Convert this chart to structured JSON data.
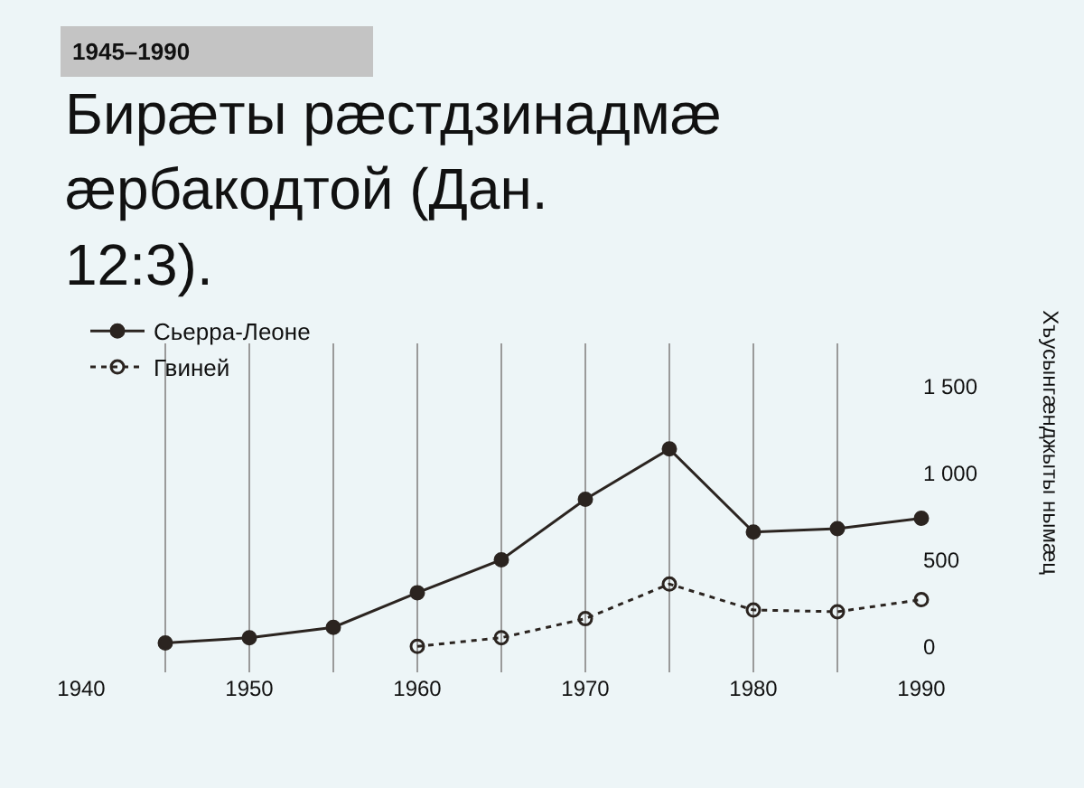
{
  "chart_data": {
    "type": "line",
    "title": "Бирæты рæстдзинадмæ æрбакодтой (Дан. 12:3).",
    "subtitle": "1945–1990",
    "ylabel": "Хъусынгæнджыты нымæц",
    "series": [
      {
        "name": "Сьерра-Леоне",
        "color": "#2b2420",
        "line_style": "solid",
        "marker": "circle",
        "x": [
          1945,
          1950,
          1955,
          1960,
          1965,
          1970,
          1975,
          1980,
          1985,
          1990
        ],
        "values": [
          20,
          50,
          110,
          310,
          500,
          850,
          1140,
          660,
          680,
          740
        ]
      },
      {
        "name": "Гвиней",
        "color": "#2b2420",
        "line_style": "dotted",
        "marker": "circle-open",
        "x": [
          1960,
          1965,
          1970,
          1975,
          1980,
          1985,
          1990
        ],
        "values": [
          0,
          50,
          160,
          360,
          210,
          200,
          270
        ]
      }
    ],
    "xlim": [
      1940,
      1990
    ],
    "xticks": [
      1940,
      {
        "value": 1945,
        "label": null
      },
      1950,
      {
        "value": 1955,
        "label": null
      },
      1960,
      {
        "value": 1965,
        "label": null
      },
      1970,
      {
        "value": 1975,
        "label": null
      },
      1980,
      {
        "value": 1985,
        "label": null
      },
      1990
    ],
    "ylim": [
      -150,
      1750
    ],
    "yticks": [
      0,
      500,
      {
        "value": 1000,
        "label": "1 000"
      },
      {
        "value": 1500,
        "label": "1 500"
      }
    ],
    "grid": "x",
    "legend": "top left"
  }
}
